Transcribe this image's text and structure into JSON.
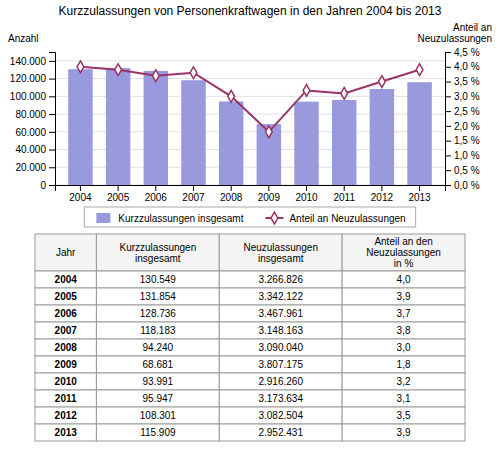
{
  "chart_data": {
    "type": "bar",
    "title": "Kurzzulassungen von Personenkraftwagen in den Jahren 2004 bis 2013",
    "categories": [
      "2004",
      "2005",
      "2006",
      "2007",
      "2008",
      "2009",
      "2010",
      "2011",
      "2012",
      "2013"
    ],
    "series": [
      {
        "name": "Kurzzulassungen insgesamt",
        "type": "bar",
        "color": "#9999dd",
        "values": [
          130549,
          131854,
          128736,
          118183,
          94240,
          68681,
          93991,
          95947,
          108301,
          115909
        ]
      },
      {
        "name": "Anteil an Neuzulassungen",
        "type": "line",
        "axis": "y2",
        "color": "#993366",
        "marker": "diamond",
        "values": [
          4.0,
          3.9,
          3.7,
          3.8,
          3.0,
          1.8,
          3.2,
          3.1,
          3.5,
          3.9
        ]
      }
    ],
    "ylabel": "Anzahl",
    "y2label": [
      "Anteil an",
      "Neuzulassungen"
    ],
    "ylim": [
      0,
      150000
    ],
    "yticks": [
      0,
      {
        "value": 20000,
        "label": "20.000"
      },
      {
        "value": 40000,
        "label": "40.000"
      },
      {
        "value": 60000,
        "label": "60.000"
      },
      {
        "value": 80000,
        "label": "80.000"
      },
      {
        "value": 100000,
        "label": "100.000"
      },
      {
        "value": 120000,
        "label": "120.000"
      },
      {
        "value": 140000,
        "label": "140.000"
      }
    ],
    "y2lim": [
      0.0,
      4.5
    ],
    "y2ticks": [
      {
        "value": 0.0,
        "label": "0,0 %"
      },
      {
        "value": 0.5,
        "label": "0,5 %"
      },
      {
        "value": 1.0,
        "label": "1,0 %"
      },
      {
        "value": 1.5,
        "label": "1,5 %"
      },
      {
        "value": 2.0,
        "label": "2,0 %"
      },
      {
        "value": 2.5,
        "label": "2,5 %"
      },
      {
        "value": 3.0,
        "label": "3,0 %"
      },
      {
        "value": 3.5,
        "label": "3,5 %"
      },
      {
        "value": 4.0,
        "label": "4,0 %"
      },
      {
        "value": 4.5,
        "label": "4,5 %"
      }
    ],
    "grid": true,
    "legend": "bottom",
    "table": {
      "headers": [
        "Jahr",
        "Kurzzulassungen\ninsgesamt",
        "Neuzulassungen\ninsgesamt",
        "Anteil an den\nNeuzulassungen\nin %"
      ],
      "rows": [
        [
          "2004",
          "130.549",
          "3.266.826",
          "4,0"
        ],
        [
          "2005",
          "131.854",
          "3.342.122",
          "3,9"
        ],
        [
          "2006",
          "128.736",
          "3.467.961",
          "3,7"
        ],
        [
          "2007",
          "118.183",
          "3.148.163",
          "3,8"
        ],
        [
          "2008",
          "94.240",
          "3.090.040",
          "3,0"
        ],
        [
          "2009",
          "68.681",
          "3.807.175",
          "1,8"
        ],
        [
          "2010",
          "93.991",
          "2.916.260",
          "3,2"
        ],
        [
          "2011",
          "95.947",
          "3.173.634",
          "3,1"
        ],
        [
          "2012",
          "108.301",
          "3.082.504",
          "3,5"
        ],
        [
          "2013",
          "115.909",
          "2.952.431",
          "3,9"
        ]
      ]
    }
  }
}
